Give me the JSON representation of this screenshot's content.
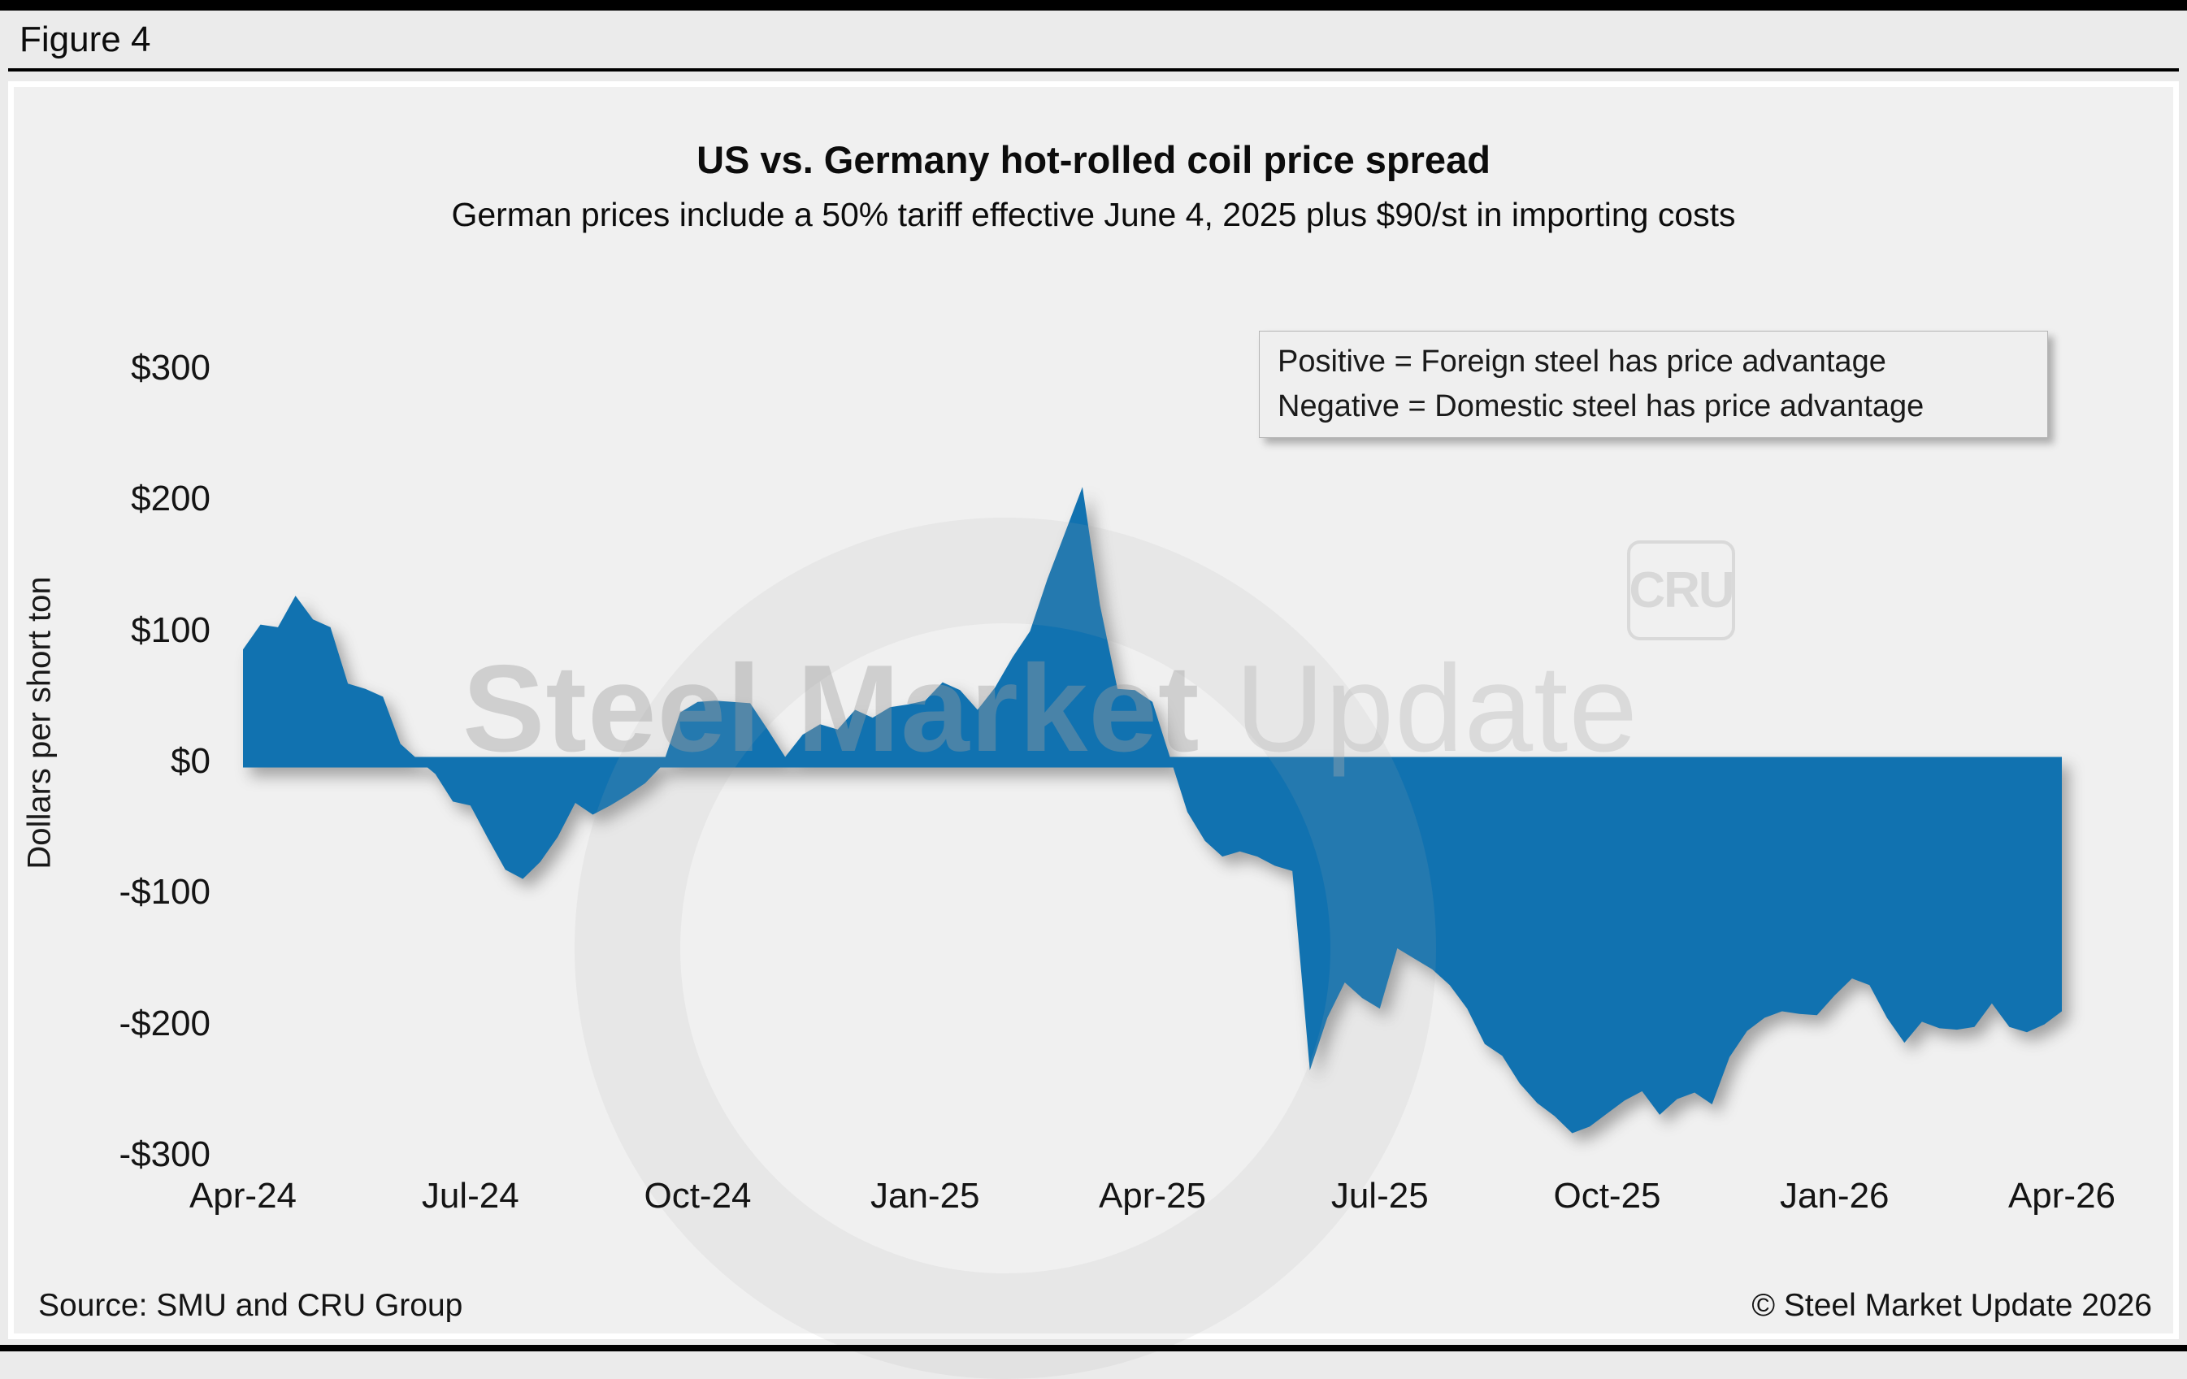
{
  "figure_label": "Figure 4",
  "chart_data": {
    "type": "area",
    "title": "US vs. Germany hot-rolled coil price spread",
    "subtitle": "German prices include a 50% tariff effective June 4, 2025 plus $90/st in importing costs",
    "ylabel": "Dollars per short ton",
    "ylim": [
      -300,
      300
    ],
    "ytick_values": [
      300,
      200,
      100,
      0,
      -100,
      -200,
      -300
    ],
    "ytick_labels": [
      "$300",
      "$200",
      "$100",
      "$0",
      "-$100",
      "-$200",
      "-$300"
    ],
    "xtick_labels": [
      "Apr-24",
      "Jul-24",
      "Oct-24",
      "Jan-25",
      "Apr-25",
      "Jul-25",
      "Oct-25",
      "Jan-26",
      "Apr-26"
    ],
    "xtick_weeks": [
      0,
      13,
      26,
      39,
      52,
      65,
      78,
      91,
      104
    ],
    "x_unit": "weekly index, 0 = Apr-24 through 104 = Apr-26 (array position = week)",
    "grid": false,
    "fill_color": "#1172b0",
    "annotation_lines": {
      "line1": "Positive = Foreign steel has price advantage",
      "line2": "Negative = Domestic steel has price advantage"
    },
    "series": [
      {
        "name": "US minus Germany HRC price spread ($/short ton)",
        "values": [
          86,
          105,
          103,
          127,
          109,
          103,
          60,
          56,
          50,
          14,
          2,
          -9,
          -30,
          -33,
          -58,
          -82,
          -89,
          -76,
          -57,
          -31,
          -40,
          -33,
          -25,
          -16,
          -2,
          38,
          46,
          47,
          46,
          45,
          25,
          4,
          21,
          29,
          25,
          40,
          34,
          42,
          44,
          47,
          61,
          55,
          40,
          57,
          80,
          100,
          140,
          175,
          210,
          120,
          56,
          55,
          46,
          4,
          -38,
          -60,
          -72,
          -68,
          -72,
          -79,
          -83,
          -235,
          -195,
          -168,
          -180,
          -188,
          -142,
          -150,
          -158,
          -170,
          -188,
          -215,
          -224,
          -245,
          -260,
          -270,
          -283,
          -278,
          -268,
          -258,
          -251,
          -269,
          -257,
          -252,
          -261,
          -225,
          -205,
          -195,
          -190,
          -192,
          -193,
          -178,
          -165,
          -170,
          -195,
          -214,
          -198,
          -203,
          -204,
          -202,
          -184,
          -202,
          -206,
          -200,
          -190
        ]
      }
    ]
  },
  "watermark": {
    "bold_text": "Steel Market",
    "light_text": " Update",
    "badge_text": "CRU"
  },
  "footer": {
    "source": "Source: SMU and CRU Group",
    "copyright": "© Steel Market Update 2026"
  }
}
